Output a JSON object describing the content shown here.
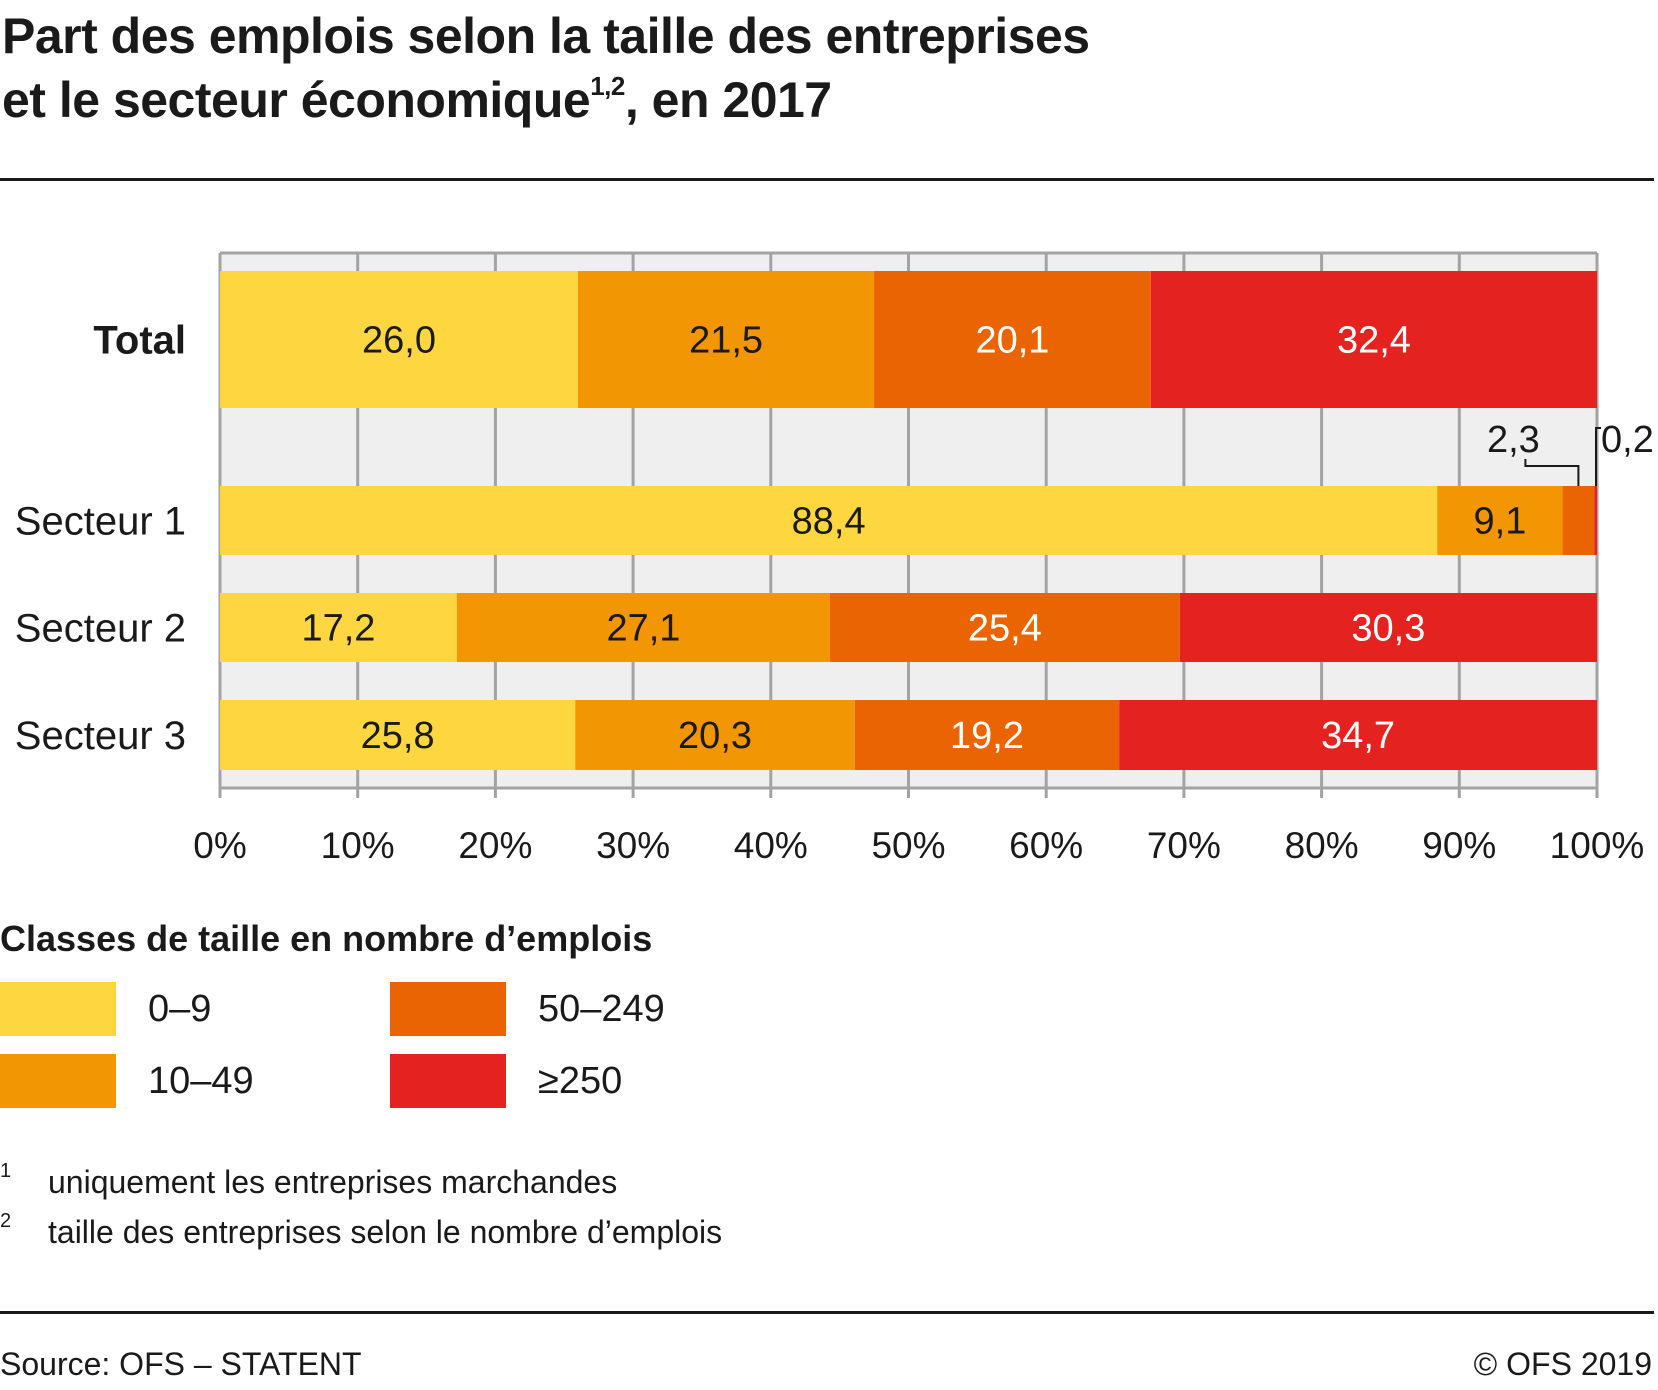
{
  "title": {
    "line1": "Part des emplois selon la taille des entreprises",
    "line2_main": "et le secteur économique",
    "line2_sup": "1,2",
    "line2_end": ", en 2017"
  },
  "chart_data": {
    "type": "bar",
    "orientation": "horizontal",
    "stacked": true,
    "title": "Part des emplois selon la taille des entreprises et le secteur économique, en 2017",
    "xlabel": "",
    "ylabel": "",
    "xlim": [
      0,
      100
    ],
    "x_ticks": [
      "0%",
      "10%",
      "20%",
      "30%",
      "40%",
      "50%",
      "60%",
      "70%",
      "80%",
      "90%",
      "100%"
    ],
    "grid": true,
    "categories": [
      "Total",
      "Secteur 1",
      "Secteur 2",
      "Secteur 3"
    ],
    "category_bold": [
      true,
      false,
      false,
      false
    ],
    "series": [
      {
        "name": "0–9",
        "color": "#FDD640",
        "label_color": "#1a1a1a",
        "values": [
          26.0,
          88.4,
          17.2,
          25.8
        ],
        "labels": [
          "26,0",
          "88,4",
          "17,2",
          "25,8"
        ]
      },
      {
        "name": "10–49",
        "color": "#F39603",
        "label_color": "#1a1a1a",
        "values": [
          21.5,
          9.1,
          27.1,
          20.3
        ],
        "labels": [
          "21,5",
          "9,1",
          "27,1",
          "20,3"
        ]
      },
      {
        "name": "50–249",
        "color": "#EB6404",
        "label_color": "#ffffff",
        "values": [
          20.1,
          2.3,
          25.4,
          19.2
        ],
        "labels": [
          "20,1",
          "2,3",
          "25,4",
          "19,2"
        ]
      },
      {
        "name": "≥250",
        "color": "#E42320",
        "label_color": "#ffffff",
        "values": [
          32.4,
          0.2,
          30.3,
          34.7
        ],
        "labels": [
          "32,4",
          "0,2",
          "30,3",
          "34,7"
        ]
      }
    ],
    "legend_title": "Classes de taille en nombre d’emplois",
    "legend_position": "bottom-left"
  },
  "footnotes": [
    {
      "num": "1",
      "text": "uniquement les entreprises marchandes"
    },
    {
      "num": "2",
      "text": "taille des entreprises selon le nombre d’emplois"
    }
  ],
  "source": "Source: OFS – STATENT",
  "copyright": "© OFS 2019"
}
